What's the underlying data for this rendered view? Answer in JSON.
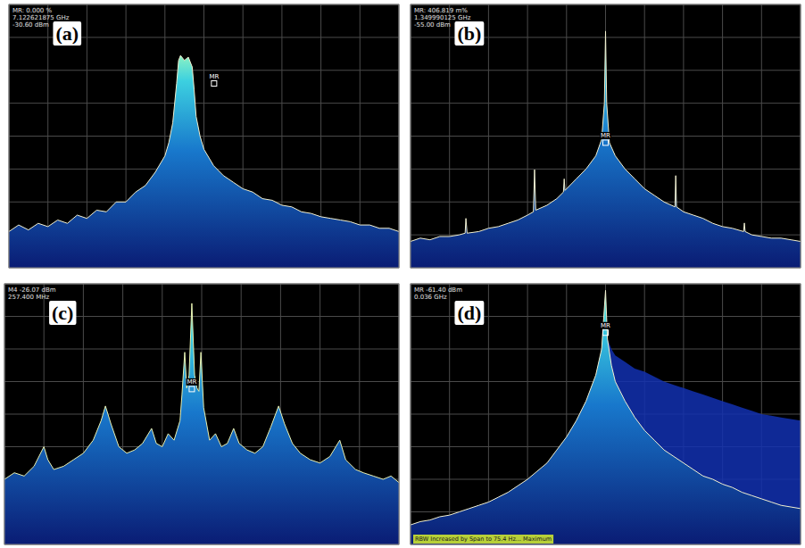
{
  "chart_data": [
    {
      "type": "line",
      "title": "(a)",
      "subtitle": [
        "MR: 0.000 %",
        "7.122621875 GHz",
        "-30.60 dBm"
      ],
      "annotations": [
        {
          "text": "MR",
          "x": 5.26,
          "y": 5.6
        }
      ],
      "x": [
        0,
        0.25,
        0.5,
        0.75,
        1,
        1.25,
        1.5,
        1.75,
        2,
        2.25,
        2.5,
        2.75,
        3,
        3.25,
        3.5,
        3.75,
        4,
        4.1,
        4.2,
        4.3,
        4.35,
        4.4,
        4.5,
        4.6,
        4.7,
        4.75,
        4.8,
        4.9,
        5,
        5.25,
        5.5,
        5.75,
        6,
        6.25,
        6.5,
        6.75,
        7,
        7.25,
        7.5,
        7.75,
        8,
        8.25,
        8.5,
        8.75,
        9,
        9.25,
        9.5,
        9.75,
        10
      ],
      "series": [
        {
          "type": "line",
          "color": "#f2f0d0",
          "values": [
            1.1,
            1.3,
            1.15,
            1.35,
            1.25,
            1.45,
            1.35,
            1.6,
            1.5,
            1.75,
            1.7,
            2.0,
            2.0,
            2.3,
            2.5,
            2.9,
            3.4,
            3.8,
            4.4,
            5.6,
            6.3,
            6.45,
            6.3,
            6.4,
            6.1,
            5.4,
            4.6,
            4.0,
            3.6,
            3.1,
            2.8,
            2.6,
            2.4,
            2.3,
            2.1,
            2.05,
            1.9,
            1.85,
            1.7,
            1.65,
            1.55,
            1.5,
            1.45,
            1.4,
            1.3,
            1.3,
            1.2,
            1.2,
            1.1
          ]
        }
      ],
      "xlim": [
        0,
        10
      ],
      "ylim": [
        0,
        8
      ],
      "xticks": [
        0,
        1,
        2,
        3,
        4,
        5,
        6,
        7,
        8,
        9,
        10
      ],
      "yticks": [
        0,
        1,
        2,
        3,
        4,
        5,
        6,
        7,
        8
      ],
      "grid": true,
      "tick_labels": false
    },
    {
      "type": "line",
      "title": "(b)",
      "subtitle": [
        "MR: 406.819 m%",
        "1.349990125 GHz",
        "-55.00 dBm"
      ],
      "annotations": [
        {
          "text": "MR",
          "x": 5.0,
          "y": 3.8
        }
      ],
      "x": [
        0,
        0.25,
        0.5,
        0.75,
        1,
        1.25,
        1.4,
        1.42,
        1.45,
        1.75,
        2,
        2.25,
        2.5,
        2.75,
        3,
        3.15,
        3.18,
        3.21,
        3.5,
        3.75,
        3.92,
        3.94,
        3.96,
        4.25,
        4.5,
        4.75,
        4.9,
        4.97,
        5,
        5.03,
        5.1,
        5.25,
        5.5,
        5.75,
        6,
        6.25,
        6.5,
        6.78,
        6.8,
        6.82,
        7,
        7.25,
        7.5,
        7.75,
        8,
        8.25,
        8.54,
        8.56,
        8.58,
        8.75,
        9,
        9.25,
        9.5,
        9.75,
        10
      ],
      "series": [
        {
          "type": "line",
          "color": "#f2f0d0",
          "values": [
            0.8,
            0.9,
            0.85,
            0.95,
            0.95,
            1.0,
            1.05,
            1.5,
            1.05,
            1.1,
            1.2,
            1.25,
            1.35,
            1.45,
            1.6,
            1.7,
            2.98,
            1.75,
            1.9,
            2.1,
            2.3,
            2.7,
            2.35,
            2.7,
            3.0,
            3.4,
            3.9,
            5.0,
            7.19,
            5.0,
            3.8,
            3.4,
            3.0,
            2.7,
            2.4,
            2.2,
            2.0,
            1.85,
            2.8,
            1.85,
            1.7,
            1.6,
            1.5,
            1.35,
            1.25,
            1.2,
            1.1,
            1.36,
            1.1,
            1.0,
            0.95,
            0.9,
            0.9,
            0.85,
            0.8
          ]
        }
      ],
      "xlim": [
        0,
        10
      ],
      "ylim": [
        0,
        8
      ],
      "xticks": [
        0,
        1,
        2,
        3,
        4,
        5,
        6,
        7,
        8,
        9,
        10
      ],
      "yticks": [
        0,
        1,
        2,
        3,
        4,
        5,
        6,
        7,
        8
      ],
      "grid": true,
      "tick_labels": false
    },
    {
      "type": "line",
      "title": "(c)",
      "subtitle": [
        "M4 -26.07 dBm",
        "257.400 MHz"
      ],
      "annotations": [
        {
          "text": "MR",
          "x": 4.75,
          "y": 4.77
        }
      ],
      "x": [
        0,
        0.25,
        0.5,
        0.75,
        1.0,
        1.1,
        1.25,
        1.5,
        1.75,
        2,
        2.25,
        2.45,
        2.56,
        2.7,
        2.9,
        3.1,
        3.3,
        3.5,
        3.73,
        3.85,
        4.0,
        4.15,
        4.3,
        4.45,
        4.5,
        4.57,
        4.62,
        4.68,
        4.75,
        4.82,
        4.88,
        4.93,
        4.98,
        5.05,
        5.2,
        5.35,
        5.5,
        5.65,
        5.81,
        5.95,
        6.15,
        6.35,
        6.55,
        6.75,
        6.95,
        7.1,
        7.3,
        7.5,
        7.75,
        8.0,
        8.25,
        8.5,
        8.65,
        8.9,
        9.1,
        9.35,
        9.6,
        9.8,
        10
      ],
      "series": [
        {
          "type": "line",
          "color": "#e8f0b0",
          "values": [
            2.0,
            2.2,
            2.1,
            2.4,
            3.0,
            2.6,
            2.3,
            2.4,
            2.6,
            2.8,
            3.2,
            3.8,
            4.25,
            3.7,
            3.0,
            2.8,
            2.9,
            3.1,
            3.56,
            3.1,
            3.0,
            3.4,
            3.2,
            3.8,
            4.6,
            5.9,
            4.8,
            5.2,
            7.4,
            5.2,
            4.8,
            4.7,
            5.9,
            4.2,
            3.2,
            3.4,
            3.0,
            3.1,
            3.56,
            3.1,
            2.9,
            2.8,
            3.0,
            3.6,
            4.25,
            3.7,
            3.1,
            2.8,
            2.6,
            2.5,
            2.7,
            3.2,
            2.6,
            2.3,
            2.2,
            2.1,
            2.0,
            2.1,
            1.9
          ]
        }
      ],
      "xlim": [
        0,
        10
      ],
      "ylim": [
        0,
        8
      ],
      "xticks": [
        0,
        1,
        2,
        3,
        4,
        5,
        6,
        7,
        8,
        9,
        10
      ],
      "yticks": [
        0,
        1,
        2,
        3,
        4,
        5,
        6,
        7,
        8
      ],
      "grid": true,
      "tick_labels": false
    },
    {
      "type": "line",
      "title": "(d)",
      "subtitle": [
        "MR -61.40 dBm",
        "0.036 GHz"
      ],
      "annotations": [
        {
          "text": "MR",
          "x": 5.0,
          "y": 6.5
        }
      ],
      "footnote": "RBW Increased by Span to 75.4 Hz... Maximum",
      "x": [
        0,
        0.25,
        0.5,
        0.75,
        1,
        1.25,
        1.5,
        1.75,
        2,
        2.25,
        2.5,
        2.75,
        3,
        3.25,
        3.5,
        3.75,
        4,
        4.25,
        4.5,
        4.75,
        4.9,
        5,
        5.05,
        5.15,
        5.25,
        5.5,
        5.75,
        6,
        6.25,
        6.5,
        6.75,
        7,
        7.25,
        7.5,
        7.75,
        8,
        8.25,
        8.5,
        8.75,
        9,
        9.25,
        9.5,
        9.75,
        10
      ],
      "series": [
        {
          "type": "area",
          "color": "#1230b0",
          "values": [
            null,
            null,
            null,
            null,
            null,
            null,
            null,
            null,
            null,
            null,
            null,
            null,
            null,
            null,
            null,
            null,
            null,
            null,
            null,
            null,
            null,
            null,
            6.3,
            6.0,
            5.8,
            5.6,
            5.4,
            5.3,
            5.15,
            5.0,
            4.9,
            4.8,
            4.7,
            4.6,
            4.5,
            4.4,
            4.3,
            4.2,
            4.1,
            4.0,
            3.95,
            3.9,
            3.85,
            3.8
          ]
        },
        {
          "type": "line",
          "color": "#f2f0d0",
          "values": [
            0.6,
            0.7,
            0.75,
            0.85,
            0.9,
            1.0,
            1.1,
            1.2,
            1.3,
            1.45,
            1.6,
            1.8,
            2.0,
            2.25,
            2.5,
            2.9,
            3.3,
            3.8,
            4.4,
            5.2,
            6.0,
            7.8,
            6.3,
            5.5,
            5.0,
            4.4,
            3.9,
            3.5,
            3.2,
            2.9,
            2.7,
            2.5,
            2.3,
            2.1,
            2.0,
            1.85,
            1.75,
            1.6,
            1.5,
            1.4,
            1.3,
            1.2,
            1.15,
            1.1
          ]
        }
      ],
      "xlim": [
        0,
        10
      ],
      "ylim": [
        0,
        8
      ],
      "xticks": [
        0,
        1,
        2,
        3,
        4,
        5,
        6,
        7,
        8,
        9,
        10
      ],
      "yticks": [
        0,
        1,
        2,
        3,
        4,
        5,
        6,
        7,
        8
      ],
      "grid": true,
      "tick_labels": false
    }
  ]
}
